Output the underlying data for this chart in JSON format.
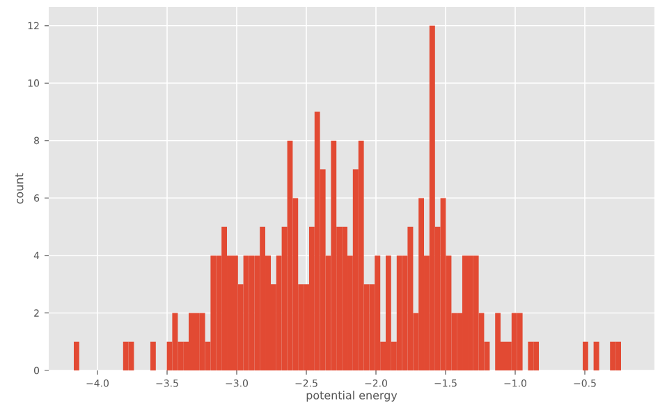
{
  "chart_data": {
    "type": "histogram",
    "xlabel": "potential energy",
    "ylabel": "count",
    "color": "#e24a33",
    "bins": [
      -4.17,
      -4.131,
      -4.091,
      -4.052,
      -4.013,
      -3.974,
      -3.934,
      -3.895,
      -3.856,
      -3.816,
      -3.777,
      -3.738,
      -3.698,
      -3.659,
      -3.62,
      -3.581,
      -3.541,
      -3.502,
      -3.463,
      -3.423,
      -3.384,
      -3.345,
      -3.305,
      -3.266,
      -3.227,
      -3.188,
      -3.148,
      -3.109,
      -3.07,
      -3.03,
      -2.991,
      -2.952,
      -2.912,
      -2.873,
      -2.834,
      -2.795,
      -2.755,
      -2.716,
      -2.677,
      -2.637,
      -2.598,
      -2.559,
      -2.519,
      -2.48,
      -2.441,
      -2.402,
      -2.362,
      -2.323,
      -2.284,
      -2.244,
      -2.205,
      -2.166,
      -2.126,
      -2.087,
      -2.048,
      -2.009,
      -1.969,
      -1.93,
      -1.891,
      -1.851,
      -1.812,
      -1.773,
      -1.733,
      -1.694,
      -1.655,
      -1.616,
      -1.576,
      -1.537,
      -1.498,
      -1.458,
      -1.419,
      -1.38,
      -1.34,
      -1.301,
      -1.262,
      -1.223,
      -1.183,
      -1.144,
      -1.105,
      -1.065,
      -1.026,
      -0.987,
      -0.947,
      -0.908,
      -0.869,
      -0.83,
      -0.79,
      -0.751,
      -0.712,
      -0.672,
      -0.633,
      -0.594,
      -0.554,
      -0.515,
      -0.476,
      -0.437,
      -0.397,
      -0.358,
      -0.319,
      -0.279,
      -0.24
    ],
    "values": [
      1,
      0,
      0,
      0,
      0,
      0,
      0,
      0,
      0,
      1,
      1,
      0,
      0,
      0,
      1,
      0,
      0,
      1,
      2,
      1,
      1,
      2,
      2,
      2,
      1,
      4,
      4,
      5,
      4,
      4,
      3,
      4,
      4,
      4,
      5,
      4,
      3,
      4,
      5,
      8,
      6,
      3,
      3,
      5,
      9,
      7,
      4,
      8,
      5,
      5,
      4,
      7,
      8,
      3,
      3,
      4,
      1,
      4,
      1,
      4,
      4,
      5,
      2,
      6,
      4,
      12,
      5,
      6,
      4,
      2,
      2,
      4,
      4,
      4,
      2,
      1,
      0,
      2,
      1,
      1,
      2,
      2,
      0,
      1,
      1,
      0,
      0,
      0,
      0,
      0,
      0,
      0,
      0,
      1,
      0,
      1,
      0,
      0,
      1,
      1
    ],
    "xlim": [
      -4.35,
      0.0
    ],
    "ylim": [
      0,
      12.65
    ],
    "xticks": [
      {
        "value": -4.0,
        "label": "−4.0"
      },
      {
        "value": -3.5,
        "label": "−3.5"
      },
      {
        "value": -3.0,
        "label": "−3.0"
      },
      {
        "value": -2.5,
        "label": "−2.5"
      },
      {
        "value": -2.0,
        "label": "−2.0"
      },
      {
        "value": -1.5,
        "label": "−1.5"
      },
      {
        "value": -1.0,
        "label": "−1.0"
      },
      {
        "value": -0.5,
        "label": "−0.5"
      }
    ],
    "yticks": [
      0,
      2,
      4,
      6,
      8,
      10,
      12
    ],
    "grid": true
  }
}
